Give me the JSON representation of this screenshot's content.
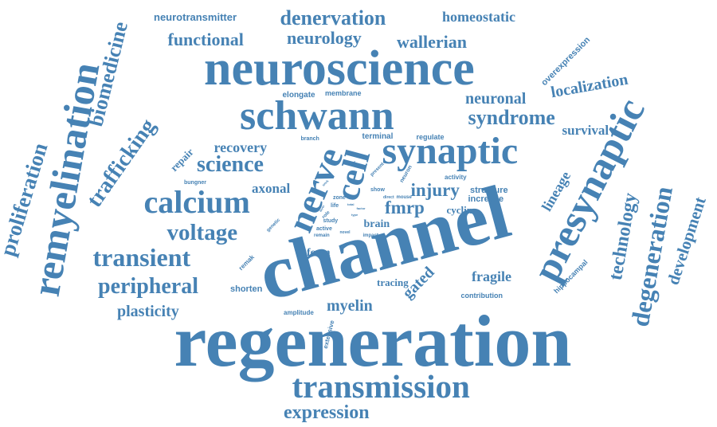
{
  "color": "#4682b4",
  "words": [
    {
      "text": "regeneration",
      "scale": 1.0
    },
    {
      "text": "channel",
      "scale": 0.97
    },
    {
      "text": "neuroscience",
      "scale": 0.72
    },
    {
      "text": "schwann",
      "scale": 0.62
    },
    {
      "text": "synaptic",
      "scale": 0.55
    },
    {
      "text": "presynaptic",
      "scale": 0.6
    },
    {
      "text": "remyelination",
      "scale": 0.62
    },
    {
      "text": "transmission",
      "scale": 0.48
    },
    {
      "text": "nerve",
      "scale": 0.55
    },
    {
      "text": "cell",
      "scale": 0.52
    },
    {
      "text": "calcium",
      "scale": 0.45
    },
    {
      "text": "transient",
      "scale": 0.38
    },
    {
      "text": "science",
      "scale": 0.32
    },
    {
      "text": "voltage",
      "scale": 0.33
    },
    {
      "text": "peripheral",
      "scale": 0.32
    },
    {
      "text": "trafficking",
      "scale": 0.34
    },
    {
      "text": "degeneration",
      "scale": 0.37
    },
    {
      "text": "proliferation",
      "scale": 0.32
    },
    {
      "text": "biomedicine",
      "scale": 0.3
    },
    {
      "text": "syndrome",
      "scale": 0.3
    },
    {
      "text": "denervation",
      "scale": 0.3
    },
    {
      "text": "expression",
      "scale": 0.3
    },
    {
      "text": "technology",
      "scale": 0.3
    },
    {
      "text": "development",
      "scale": 0.25
    },
    {
      "text": "functional",
      "scale": 0.26
    },
    {
      "text": "neurology",
      "scale": 0.26
    },
    {
      "text": "wallerian",
      "scale": 0.27
    },
    {
      "text": "neuronal",
      "scale": 0.24
    },
    {
      "text": "localization",
      "scale": 0.23
    },
    {
      "text": "injury",
      "scale": 0.26
    },
    {
      "text": "fmrp",
      "scale": 0.26
    },
    {
      "text": "plasticity",
      "scale": 0.24
    },
    {
      "text": "lineage",
      "scale": 0.22
    },
    {
      "text": "myelin",
      "scale": 0.24
    },
    {
      "text": "gated",
      "scale": 0.24
    },
    {
      "text": "fragile",
      "scale": 0.22
    },
    {
      "text": "homeostatic",
      "scale": 0.2
    },
    {
      "text": "recovery",
      "scale": 0.2
    },
    {
      "text": "axonal",
      "scale": 0.19
    },
    {
      "text": "survival",
      "scale": 0.19
    },
    {
      "text": "brain",
      "scale": 0.16
    },
    {
      "text": "form",
      "scale": 0.16
    },
    {
      "text": "repair",
      "scale": 0.15
    },
    {
      "text": "tracing",
      "scale": 0.15
    },
    {
      "text": "cyclin",
      "scale": 0.15
    },
    {
      "text": "structure",
      "scale": 0.13
    },
    {
      "text": "increase",
      "scale": 0.13
    },
    {
      "text": "shorten",
      "scale": 0.13
    },
    {
      "text": "neurotransmitter",
      "scale": 0.15
    },
    {
      "text": "overexpression",
      "scale": 0.13
    },
    {
      "text": "elongate",
      "scale": 0.11
    },
    {
      "text": "membrane",
      "scale": 0.1
    },
    {
      "text": "terminal",
      "scale": 0.11
    },
    {
      "text": "regulate",
      "scale": 0.1
    },
    {
      "text": "hippocampal",
      "scale": 0.1
    },
    {
      "text": "contribution",
      "scale": 0.1
    },
    {
      "text": "amplitude",
      "scale": 0.1
    },
    {
      "text": "extensive",
      "scale": 0.09
    },
    {
      "text": "activity",
      "scale": 0.09
    },
    {
      "text": "remak",
      "scale": 0.09
    },
    {
      "text": "bungner",
      "scale": 0.08
    },
    {
      "text": "genetic",
      "scale": 0.07
    },
    {
      "text": "branch",
      "scale": 0.08
    },
    {
      "text": "neuron",
      "scale": 0.08
    },
    {
      "text": "present",
      "scale": 0.07
    },
    {
      "text": "show",
      "scale": 0.08
    },
    {
      "text": "mouse",
      "scale": 0.07
    },
    {
      "text": "direct",
      "scale": 0.06
    },
    {
      "text": "zone",
      "scale": 0.08
    },
    {
      "text": "life",
      "scale": 0.08
    },
    {
      "text": "role",
      "scale": 0.07
    },
    {
      "text": "study",
      "scale": 0.08
    },
    {
      "text": "active",
      "scale": 0.08
    },
    {
      "text": "remain",
      "scale": 0.07
    },
    {
      "text": "novel",
      "scale": 0.06
    },
    {
      "text": "impact",
      "scale": 0.07
    },
    {
      "text": "band",
      "scale": 0.06
    },
    {
      "text": "work",
      "scale": 0.05
    },
    {
      "text": "total",
      "scale": 0.05
    },
    {
      "text": "type",
      "scale": 0.05
    },
    {
      "text": "level",
      "scale": 0.05
    },
    {
      "text": "factor",
      "scale": 0.05
    }
  ]
}
